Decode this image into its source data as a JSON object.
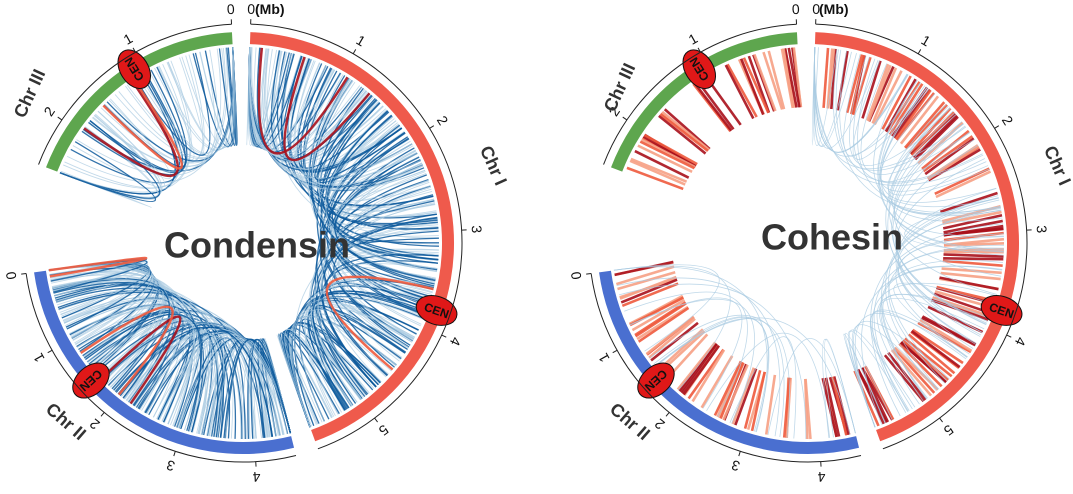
{
  "unit_label": "(Mb)",
  "colors": {
    "chr1": "#ef5a4c",
    "chr2": "#4a6fd0",
    "chr3": "#5ea64e",
    "cen_fill": "#e01818",
    "light_blue": "#a9cbe1",
    "dark_blue": "#0e5a9c",
    "light_red": "#f6a084",
    "mid_red": "#ee5a3d",
    "dark_red": "#a8101b"
  },
  "panels": [
    {
      "title": "Condensin",
      "chromosomes": [
        {
          "name": "Chr I",
          "ticks": [
            "0",
            "1",
            "2",
            "3",
            "4",
            "5"
          ],
          "cen_label": "CEN"
        },
        {
          "name": "Chr II",
          "ticks": [
            "0",
            "1",
            "2",
            "3",
            "4"
          ],
          "cen_label": "CEN"
        },
        {
          "name": "Chr III",
          "ticks": [
            "0",
            "1",
            "2"
          ],
          "cen_label": "CEN"
        }
      ]
    },
    {
      "title": "Cohesin",
      "chromosomes": [
        {
          "name": "Chr I",
          "ticks": [
            "0",
            "1",
            "2",
            "3",
            "4",
            "5"
          ],
          "cen_label": "CEN"
        },
        {
          "name": "Chr II",
          "ticks": [
            "0",
            "1",
            "2",
            "3",
            "4"
          ],
          "cen_label": "CEN"
        },
        {
          "name": "Chr III",
          "ticks": [
            "0",
            "1",
            "2"
          ],
          "cen_label": "CEN"
        }
      ]
    }
  ]
}
